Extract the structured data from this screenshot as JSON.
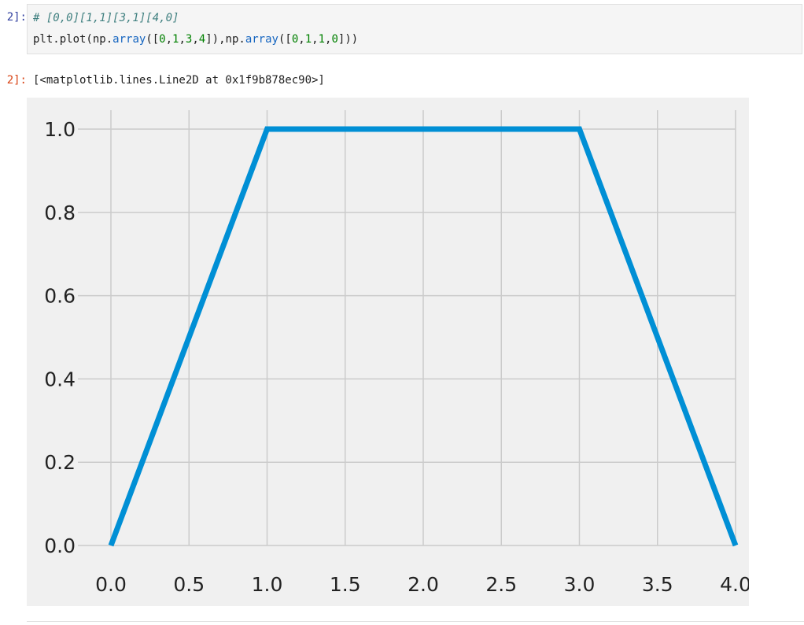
{
  "cell": {
    "in_prompt": "2]:",
    "out_prompt": "2]:",
    "comment": "# [0,0][1,1][3,1][4,0]",
    "code_tokens": [
      {
        "t": "plt.plot(np.",
        "c": ""
      },
      {
        "t": "array",
        "c": "fn"
      },
      {
        "t": "([",
        "c": ""
      },
      {
        "t": "0",
        "c": "num"
      },
      {
        "t": ",",
        "c": ""
      },
      {
        "t": "1",
        "c": "num"
      },
      {
        "t": ",",
        "c": ""
      },
      {
        "t": "3",
        "c": "num"
      },
      {
        "t": ",",
        "c": ""
      },
      {
        "t": "4",
        "c": "num"
      },
      {
        "t": "]),np.",
        "c": ""
      },
      {
        "t": "array",
        "c": "fn"
      },
      {
        "t": "([",
        "c": ""
      },
      {
        "t": "0",
        "c": "num"
      },
      {
        "t": ",",
        "c": ""
      },
      {
        "t": "1",
        "c": "num"
      },
      {
        "t": ",",
        "c": ""
      },
      {
        "t": "1",
        "c": "num"
      },
      {
        "t": ",",
        "c": ""
      },
      {
        "t": "0",
        "c": "num"
      },
      {
        "t": "]))",
        "c": ""
      }
    ],
    "output": "[<matplotlib.lines.Line2D at 0x1f9b878ec90>]"
  },
  "chart_data": {
    "type": "line",
    "title": "",
    "xlabel": "",
    "ylabel": "",
    "xlim": [
      0,
      4
    ],
    "ylim": [
      0,
      1
    ],
    "grid": true,
    "x_ticks": [
      "0.0",
      "0.5",
      "1.0",
      "1.5",
      "2.0",
      "2.5",
      "3.0",
      "3.5",
      "4.0"
    ],
    "y_ticks": [
      "0.0",
      "0.2",
      "0.4",
      "0.6",
      "0.8",
      "1.0"
    ],
    "series": [
      {
        "x": [
          0,
          1,
          3,
          4
        ],
        "y": [
          0,
          1,
          1,
          0
        ],
        "color": "#008fd5"
      }
    ],
    "background": "#f0f0f0",
    "grid_color": "#cbcbcb"
  }
}
